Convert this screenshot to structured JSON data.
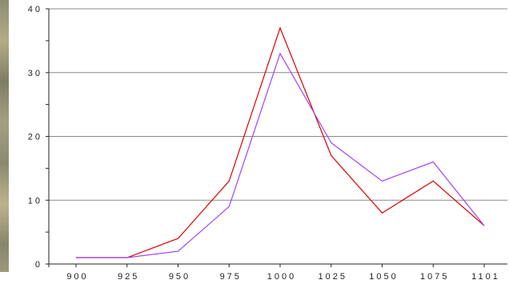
{
  "chart_data": {
    "type": "line",
    "title": "",
    "xlabel": "",
    "ylabel": "",
    "categories": [
      "900",
      "925",
      "950",
      "975",
      "1000",
      "1025",
      "1050",
      "1075",
      "1101"
    ],
    "ylim": [
      0,
      40
    ],
    "y_ticks": [
      "0",
      "10",
      "20",
      "30",
      "40"
    ],
    "grid": "horizontal",
    "series": [
      {
        "color": "#dd0000",
        "values": [
          1,
          1,
          4,
          13,
          37,
          17,
          8,
          13,
          6
        ]
      },
      {
        "color": "#a040ff",
        "values": [
          1,
          1,
          2,
          9,
          33,
          19,
          13,
          16,
          6
        ]
      }
    ],
    "gridline_color": "#888888",
    "axis_color": "#222222"
  }
}
